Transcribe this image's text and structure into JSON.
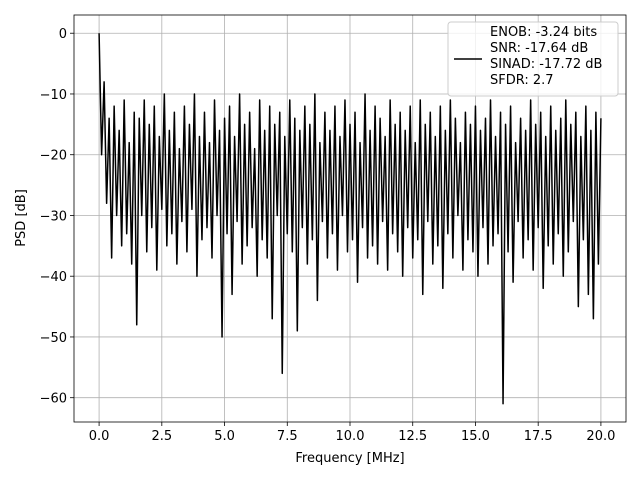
{
  "chart_data": {
    "type": "line",
    "xlabel": "Frequency [MHz]",
    "ylabel": "PSD [dB]",
    "x": [
      0.0,
      0.1,
      0.2,
      0.3,
      0.4,
      0.5,
      0.6,
      0.7,
      0.8,
      0.9,
      1.0,
      1.1,
      1.2,
      1.3,
      1.4,
      1.5,
      1.6,
      1.7,
      1.8,
      1.9,
      2.0,
      2.1,
      2.2,
      2.3,
      2.4,
      2.5,
      2.6,
      2.7,
      2.8,
      2.9,
      3.0,
      3.1,
      3.2,
      3.3,
      3.4,
      3.5,
      3.6,
      3.7,
      3.8,
      3.9,
      4.0,
      4.1,
      4.2,
      4.3,
      4.4,
      4.5,
      4.6,
      4.7,
      4.8,
      4.9,
      5.0,
      5.1,
      5.2,
      5.3,
      5.4,
      5.5,
      5.6,
      5.7,
      5.8,
      5.9,
      6.0,
      6.1,
      6.2,
      6.3,
      6.4,
      6.5,
      6.6,
      6.7,
      6.8,
      6.9,
      7.0,
      7.1,
      7.2,
      7.3,
      7.4,
      7.5,
      7.6,
      7.7,
      7.8,
      7.9,
      8.0,
      8.1,
      8.2,
      8.3,
      8.4,
      8.5,
      8.6,
      8.7,
      8.8,
      8.9,
      9.0,
      9.1,
      9.2,
      9.3,
      9.4,
      9.5,
      9.6,
      9.7,
      9.8,
      9.9,
      10.0,
      10.1,
      10.2,
      10.3,
      10.4,
      10.5,
      10.6,
      10.7,
      10.8,
      10.9,
      11.0,
      11.1,
      11.2,
      11.3,
      11.4,
      11.5,
      11.6,
      11.7,
      11.8,
      11.9,
      12.0,
      12.1,
      12.2,
      12.3,
      12.4,
      12.5,
      12.6,
      12.7,
      12.8,
      12.9,
      13.0,
      13.1,
      13.2,
      13.3,
      13.4,
      13.5,
      13.6,
      13.7,
      13.8,
      13.9,
      14.0,
      14.1,
      14.2,
      14.3,
      14.4,
      14.5,
      14.6,
      14.7,
      14.8,
      14.9,
      15.0,
      15.1,
      15.2,
      15.3,
      15.4,
      15.5,
      15.6,
      15.7,
      15.8,
      15.9,
      16.0,
      16.1,
      16.2,
      16.3,
      16.4,
      16.5,
      16.6,
      16.7,
      16.8,
      16.9,
      17.0,
      17.1,
      17.2,
      17.3,
      17.4,
      17.5,
      17.6,
      17.7,
      17.8,
      17.9,
      18.0,
      18.1,
      18.2,
      18.3,
      18.4,
      18.5,
      18.6,
      18.7,
      18.8,
      18.9,
      19.0,
      19.1,
      19.2,
      19.3,
      19.4,
      19.5,
      19.6,
      19.7,
      19.8,
      19.9,
      20.0
    ],
    "series": [
      {
        "name": "ENOB: -3.24 bits\nSNR: -17.64 dB\nSINAD: -17.72 dB\nSFDR: 2.7",
        "color": "#000000",
        "values": [
          0,
          -20,
          -8,
          -28,
          -14,
          -37,
          -12,
          -30,
          -16,
          -35,
          -11,
          -33,
          -18,
          -38,
          -13,
          -48,
          -14,
          -30,
          -11,
          -36,
          -15,
          -32,
          -12,
          -39,
          -17,
          -29,
          -10,
          -35,
          -16,
          -33,
          -13,
          -38,
          -19,
          -31,
          -12,
          -36,
          -15,
          -29,
          -10,
          -40,
          -17,
          -34,
          -13,
          -32,
          -18,
          -37,
          -11,
          -30,
          -16,
          -50,
          -14,
          -33,
          -12,
          -43,
          -17,
          -31,
          -10,
          -38,
          -15,
          -35,
          -13,
          -32,
          -19,
          -40,
          -11,
          -34,
          -16,
          -37,
          -12,
          -47,
          -15,
          -30,
          -13,
          -56,
          -17,
          -33,
          -11,
          -36,
          -14,
          -49,
          -16,
          -32,
          -12,
          -38,
          -15,
          -34,
          -10,
          -44,
          -18,
          -31,
          -13,
          -37,
          -16,
          -33,
          -12,
          -39,
          -17,
          -30,
          -11,
          -36,
          -15,
          -34,
          -13,
          -41,
          -18,
          -32,
          -10,
          -37,
          -16,
          -35,
          -12,
          -38,
          -14,
          -31,
          -17,
          -39,
          -11,
          -33,
          -15,
          -36,
          -13,
          -40,
          -16,
          -32,
          -12,
          -37,
          -18,
          -34,
          -11,
          -43,
          -15,
          -31,
          -13,
          -38,
          -17,
          -35,
          -12,
          -42,
          -16,
          -33,
          -11,
          -37,
          -14,
          -30,
          -18,
          -39,
          -13,
          -34,
          -15,
          -36,
          -12,
          -40,
          -16,
          -32,
          -14,
          -38,
          -11,
          -35,
          -17,
          -33,
          -13,
          -61,
          -15,
          -36,
          -12,
          -41,
          -18,
          -31,
          -14,
          -37,
          -16,
          -34,
          -11,
          -39,
          -15,
          -32,
          -13,
          -42,
          -17,
          -35,
          -12,
          -38,
          -16,
          -33,
          -14,
          -40,
          -11,
          -36,
          -15,
          -31,
          -13,
          -45,
          -17,
          -34,
          -12,
          -43,
          -16,
          -47,
          -13,
          -38,
          -14
        ]
      }
    ],
    "xlim": [
      -1,
      21
    ],
    "ylim": [
      -64,
      3
    ],
    "xticks": [
      {
        "value": 0,
        "label": "0.0"
      },
      {
        "value": 2.5,
        "label": "2.5"
      },
      {
        "value": 5,
        "label": "5.0"
      },
      {
        "value": 7.5,
        "label": "7.5"
      },
      {
        "value": 10,
        "label": "10.0"
      },
      {
        "value": 12.5,
        "label": "12.5"
      },
      {
        "value": 15,
        "label": "15.0"
      },
      {
        "value": 17.5,
        "label": "17.5"
      },
      {
        "value": 20,
        "label": "20.0"
      }
    ],
    "yticks": [
      0,
      {
        "value": -10,
        "label": "−10"
      },
      {
        "value": -20,
        "label": "−20"
      },
      {
        "value": -30,
        "label": "−30"
      },
      {
        "value": -40,
        "label": "−40"
      },
      {
        "value": -50,
        "label": "−50"
      },
      {
        "value": -60,
        "label": "−60"
      }
    ],
    "grid": true,
    "legend": "upper right"
  }
}
